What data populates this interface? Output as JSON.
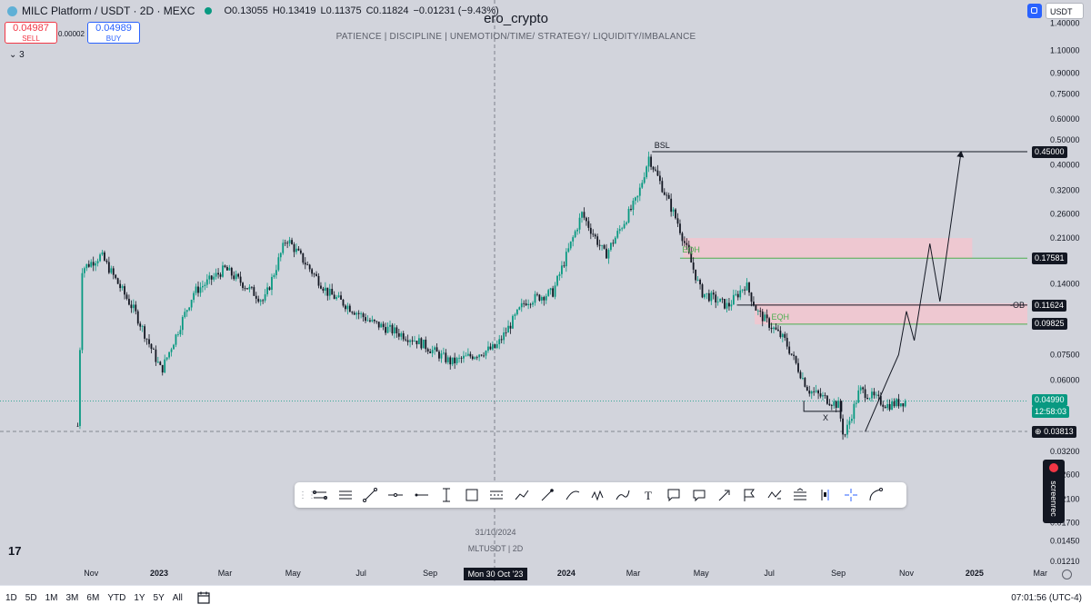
{
  "header": {
    "symbol_title": "MILC Platform / USDT · 2D · MEXC",
    "open": "O0.13055",
    "high": "H0.13419",
    "low": "L0.11375",
    "close": "C0.11824",
    "change": "−0.01231 (−9.43%)",
    "sell_price": "0.04987",
    "sell_label": "SELL",
    "spread": "0.00002",
    "buy_price": "0.04989",
    "buy_label": "BUY",
    "indicators_count": "3",
    "currency": "USDT"
  },
  "publication": {
    "author": "ero_crypto",
    "subtitle": "PATIENCE   |   DISCIPLINE   |   UNEMOTION/TIME/ STRATEGY/ LIQUIDITY/IMBALANCE"
  },
  "watermark": {
    "date": "31/10/2024",
    "symbol": "MLTUSDT  |  2D"
  },
  "price_axis": {
    "labels": [
      "1.40000",
      "1.10000",
      "0.90000",
      "0.75000",
      "0.60000",
      "0.50000",
      "0.40000",
      "0.32000",
      "0.26000",
      "0.21000",
      "0.14000",
      "0.07500",
      "0.06000",
      "0.03200",
      "0.02600",
      "0.02100",
      "0.01700",
      "0.01450",
      "0.01210"
    ],
    "scale": "log",
    "tag_bsl": "0.45000",
    "tag_upper_eqh": "0.17581",
    "tag_ob": "0.11624",
    "tag_lower_eqh": "0.09825",
    "tag_last": "0.04990",
    "tag_countdown": "12:58:03",
    "tag_cursor": "0.03813"
  },
  "time_axis": {
    "labels": [
      "Nov",
      "2023",
      "Mar",
      "May",
      "Jul",
      "Sep",
      "2024",
      "Mar",
      "May",
      "Jul",
      "Sep",
      "Nov",
      "2025",
      "Mar"
    ],
    "cursor_date": "Mon 30 Oct '23"
  },
  "annotations": {
    "bsl": "BSL",
    "eqh_upper": "EQH",
    "eqh_lower": "EQH",
    "ob": "-OB",
    "x_mark": "X"
  },
  "toolbar": {
    "tools": [
      "trend-channel",
      "regression",
      "trend-line",
      "horizontal-line",
      "horizontal-ray",
      "vertical-range",
      "rectangle",
      "date-range",
      "path",
      "arrow",
      "curve",
      "pattern",
      "brush",
      "text",
      "callout",
      "comment",
      "arrow-marker",
      "flag",
      "xabcd",
      "long-position",
      "anchored-vwap",
      "crosshair",
      "arc"
    ]
  },
  "bottom_bar": {
    "ranges": [
      "1D",
      "5D",
      "1M",
      "3M",
      "6M",
      "YTD",
      "1Y",
      "5Y",
      "All"
    ],
    "clock": "07:01:56 (UTC-4)"
  },
  "screenrec_label": "screenrec",
  "tv_logo": "17",
  "colors": {
    "up": "#089981",
    "down": "#131722",
    "eqh": "#4caf50",
    "zone": "#f3c6cf",
    "background": "#d2d4dc"
  },
  "chart_data": {
    "type": "candlestick",
    "symbol": "MLTUSDT",
    "timeframe": "2D",
    "y_scale": "log",
    "ylim": [
      0.0121,
      1.4
    ],
    "x_range": [
      "2022-10-15",
      "2025-03-20"
    ],
    "series_approx_closes": [
      {
        "date": "2022-10-20",
        "value": 0.04
      },
      {
        "date": "2022-10-24",
        "value": 0.16
      },
      {
        "date": "2022-11-10",
        "value": 0.18
      },
      {
        "date": "2022-12-10",
        "value": 0.11
      },
      {
        "date": "2023-01-03",
        "value": 0.065
      },
      {
        "date": "2023-02-01",
        "value": 0.13
      },
      {
        "date": "2023-03-01",
        "value": 0.16
      },
      {
        "date": "2023-04-05",
        "value": 0.12
      },
      {
        "date": "2023-04-25",
        "value": 0.21
      },
      {
        "date": "2023-06-01",
        "value": 0.13
      },
      {
        "date": "2023-07-10",
        "value": 0.1
      },
      {
        "date": "2023-08-20",
        "value": 0.085
      },
      {
        "date": "2023-09-20",
        "value": 0.07
      },
      {
        "date": "2023-10-30",
        "value": 0.08
      },
      {
        "date": "2023-11-25",
        "value": 0.12
      },
      {
        "date": "2023-12-20",
        "value": 0.13
      },
      {
        "date": "2024-01-15",
        "value": 0.26
      },
      {
        "date": "2024-02-05",
        "value": 0.18
      },
      {
        "date": "2024-03-05",
        "value": 0.3
      },
      {
        "date": "2024-03-15",
        "value": 0.43
      },
      {
        "date": "2024-04-10",
        "value": 0.24
      },
      {
        "date": "2024-05-01",
        "value": 0.13
      },
      {
        "date": "2024-05-25",
        "value": 0.115
      },
      {
        "date": "2024-06-10",
        "value": 0.14
      },
      {
        "date": "2024-06-20",
        "value": 0.11
      },
      {
        "date": "2024-07-15",
        "value": 0.085
      },
      {
        "date": "2024-08-05",
        "value": 0.055
      },
      {
        "date": "2024-09-01",
        "value": 0.048
      },
      {
        "date": "2024-09-06",
        "value": 0.036
      },
      {
        "date": "2024-09-20",
        "value": 0.055
      },
      {
        "date": "2024-10-15",
        "value": 0.048
      },
      {
        "date": "2024-11-01",
        "value": 0.0499
      }
    ],
    "levels": [
      {
        "name": "BSL",
        "value": 0.45
      },
      {
        "name": "EQH",
        "value": 0.17581
      },
      {
        "name": "-OB",
        "value": 0.11624
      },
      {
        "name": "EQH",
        "value": 0.09825
      }
    ],
    "projection": [
      {
        "date": "2024-09-25",
        "value": 0.038
      },
      {
        "date": "2024-10-15",
        "value": 0.06
      },
      {
        "date": "2024-10-25",
        "value": 0.075
      },
      {
        "date": "2024-11-01",
        "value": 0.11
      },
      {
        "date": "2024-11-08",
        "value": 0.085
      },
      {
        "date": "2024-11-22",
        "value": 0.2
      },
      {
        "date": "2024-12-01",
        "value": 0.12
      },
      {
        "date": "2024-12-20",
        "value": 0.45
      }
    ]
  }
}
